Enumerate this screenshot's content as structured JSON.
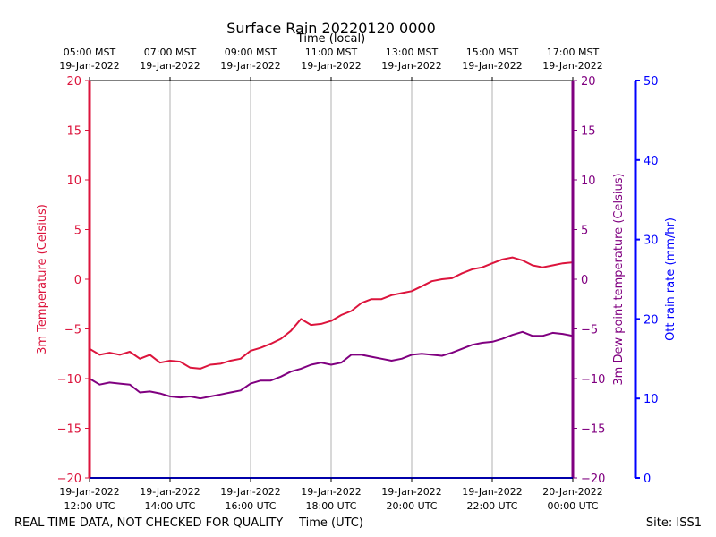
{
  "chart_data": {
    "type": "line",
    "title": "Surface Rain 20220120 0000",
    "top_axis_label": "Time (local)",
    "top_ticks": [
      {
        "t": 0,
        "l1": "05:00 MST",
        "l2": "19-Jan-2022"
      },
      {
        "t": 2,
        "l1": "07:00 MST",
        "l2": "19-Jan-2022"
      },
      {
        "t": 4,
        "l1": "09:00 MST",
        "l2": "19-Jan-2022"
      },
      {
        "t": 6,
        "l1": "11:00 MST",
        "l2": "19-Jan-2022"
      },
      {
        "t": 8,
        "l1": "13:00 MST",
        "l2": "19-Jan-2022"
      },
      {
        "t": 10,
        "l1": "15:00 MST",
        "l2": "19-Jan-2022"
      },
      {
        "t": 12,
        "l1": "17:00 MST",
        "l2": "19-Jan-2022"
      }
    ],
    "xlabel": "Time (UTC)",
    "x_ticks": [
      {
        "t": 0,
        "l1": "19-Jan-2022",
        "l2": "12:00 UTC"
      },
      {
        "t": 2,
        "l1": "19-Jan-2022",
        "l2": "14:00 UTC"
      },
      {
        "t": 4,
        "l1": "19-Jan-2022",
        "l2": "16:00 UTC"
      },
      {
        "t": 6,
        "l1": "19-Jan-2022",
        "l2": "18:00 UTC"
      },
      {
        "t": 8,
        "l1": "19-Jan-2022",
        "l2": "20:00 UTC"
      },
      {
        "t": 10,
        "l1": "19-Jan-2022",
        "l2": "22:00 UTC"
      },
      {
        "t": 12,
        "l1": "20-Jan-2022",
        "l2": "00:00 UTC"
      }
    ],
    "xlim": [
      0,
      12
    ],
    "ylim": [
      -20,
      20
    ],
    "y_ticks": [
      -20,
      -15,
      -10,
      -5,
      0,
      5,
      10,
      15,
      20
    ],
    "y2_ticks": [
      0,
      10,
      20,
      30,
      40,
      50
    ],
    "y2lim": [
      0,
      50
    ],
    "ylabel_left": "3m Temperature (Celsius)",
    "ylabel_right": "3m Dew point temperature (Celsius)",
    "ylabel_rain": "Ott rain rate (mm/hr)",
    "grid": "vertical",
    "colors": {
      "temperature": "#dc143c",
      "dewpoint": "#800080",
      "rain": "#0000ff",
      "grid": "#b0b0b0",
      "axes": "#000000"
    },
    "series": [
      {
        "key": "temperature",
        "x": [
          0,
          0.25,
          0.5,
          0.75,
          1,
          1.25,
          1.5,
          1.75,
          2,
          2.25,
          2.5,
          2.75,
          3,
          3.25,
          3.5,
          3.75,
          4,
          4.25,
          4.5,
          4.75,
          5,
          5.25,
          5.5,
          5.75,
          6,
          6.25,
          6.5,
          6.75,
          7,
          7.25,
          7.5,
          7.75,
          8,
          8.25,
          8.5,
          8.75,
          9,
          9.25,
          9.5,
          9.75,
          10,
          10.25,
          10.5,
          10.75,
          11,
          11.25,
          11.5,
          11.75,
          12
        ],
        "values": [
          -7.0,
          -7.6,
          -7.4,
          -7.6,
          -7.3,
          -8.0,
          -7.6,
          -8.4,
          -8.2,
          -8.3,
          -8.9,
          -9.0,
          -8.6,
          -8.5,
          -8.2,
          -8.0,
          -7.2,
          -6.9,
          -6.5,
          -6.0,
          -5.2,
          -4.0,
          -4.6,
          -4.5,
          -4.2,
          -3.6,
          -3.2,
          -2.4,
          -2.0,
          -2.0,
          -1.6,
          -1.4,
          -1.2,
          -0.7,
          -0.2,
          0.0,
          0.1,
          0.6,
          1.0,
          1.2,
          1.6,
          2.0,
          2.2,
          1.9,
          1.4,
          1.2,
          1.4,
          1.6,
          1.7
        ]
      },
      {
        "key": "dewpoint",
        "x": [
          0,
          0.25,
          0.5,
          0.75,
          1,
          1.25,
          1.5,
          1.75,
          2,
          2.25,
          2.5,
          2.75,
          3,
          3.25,
          3.5,
          3.75,
          4,
          4.25,
          4.5,
          4.75,
          5,
          5.25,
          5.5,
          5.75,
          6,
          6.25,
          6.5,
          6.75,
          7,
          7.25,
          7.5,
          7.75,
          8,
          8.25,
          8.5,
          8.75,
          9,
          9.25,
          9.5,
          9.75,
          10,
          10.25,
          10.5,
          10.75,
          11,
          11.25,
          11.5,
          11.75,
          12
        ],
        "values": [
          -10.0,
          -10.6,
          -10.4,
          -10.5,
          -10.6,
          -11.4,
          -11.3,
          -11.5,
          -11.8,
          -11.9,
          -11.8,
          -12.0,
          -11.8,
          -11.6,
          -11.4,
          -11.2,
          -10.5,
          -10.2,
          -10.2,
          -9.8,
          -9.3,
          -9.0,
          -8.6,
          -8.4,
          -8.6,
          -8.4,
          -7.6,
          -7.6,
          -7.8,
          -8.0,
          -8.2,
          -8.0,
          -7.6,
          -7.5,
          -7.6,
          -7.7,
          -7.4,
          -7.0,
          -6.6,
          -6.4,
          -6.3,
          -6.0,
          -5.6,
          -5.3,
          -5.7,
          -5.7,
          -5.4,
          -5.5,
          -5.7
        ]
      }
    ],
    "rain_values": []
  },
  "footer": {
    "left_note": "REAL TIME DATA, NOT CHECKED FOR QUALITY",
    "site": "Site: ISS1"
  }
}
